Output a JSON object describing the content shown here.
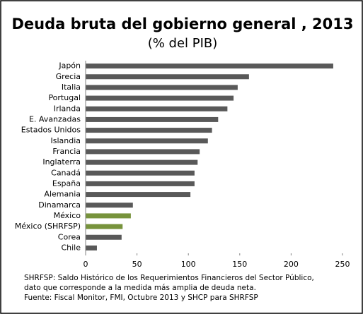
{
  "chart_data": {
    "type": "barh",
    "title": "Deuda bruta del gobierno general , 2013",
    "subtitle": "(% del PIB)",
    "categories": [
      "Japón",
      "Grecia",
      "Italia",
      "Portugal",
      "Irlanda",
      "E. Avanzadas",
      "Estados Unidos",
      "Islandia",
      "Francia",
      "Inglaterra",
      "Canadá",
      "España",
      "Alemania",
      "Dinamarca",
      "México",
      "México (SHRFSP)",
      "Corea",
      "Chile"
    ],
    "values": [
      241,
      159,
      148,
      144,
      138,
      129,
      123,
      119,
      111,
      109,
      106,
      106,
      102,
      46,
      44,
      36,
      35,
      11
    ],
    "colors": [
      "#595959",
      "#595959",
      "#595959",
      "#595959",
      "#595959",
      "#595959",
      "#595959",
      "#595959",
      "#595959",
      "#595959",
      "#595959",
      "#595959",
      "#595959",
      "#595959",
      "#77933c",
      "#77933c",
      "#595959",
      "#595959"
    ],
    "xlim": [
      0,
      250
    ],
    "xticks": [
      0,
      50,
      100,
      150,
      200,
      250
    ],
    "notes": [
      "SHRFSP: Saldo Histórico de los Requerimientos  Financieros del Sector Público,",
      "dato que corresponde a la medida más amplia de deuda neta.",
      "Fuente: Fiscal Monitor, FMI, Octubre 2013 y SHCP para SHRFSP"
    ]
  }
}
